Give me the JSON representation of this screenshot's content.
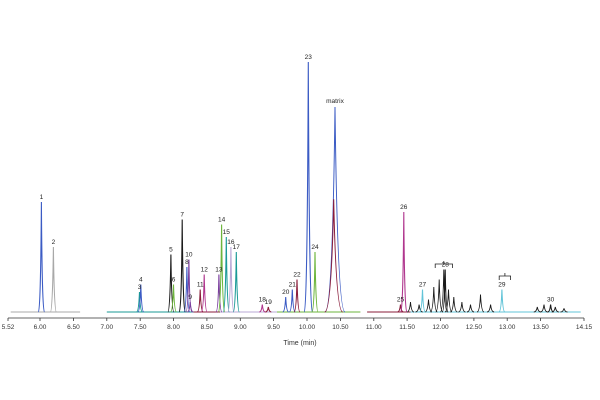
{
  "chart_data": {
    "type": "line",
    "xlabel": "Time (min)",
    "xlim": [
      5.52,
      14.15
    ],
    "x_ticks": [
      "5.52",
      "6.00",
      "6.50",
      "7.00",
      "7.50",
      "8.00",
      "8.50",
      "9.00",
      "9.50",
      "10.00",
      "10.50",
      "11.00",
      "11.50",
      "12.00",
      "12.50",
      "13.00",
      "13.50",
      "14.15"
    ],
    "ylim": [
      0,
      100
    ],
    "colors": {
      "blue": "#3b5bc4",
      "gray": "#a8a8a8",
      "black": "#1a1a1a",
      "green": "#6db53c",
      "teal": "#1a9a96",
      "magenta": "#b0368e",
      "maroon": "#8a1c3a",
      "purple": "#7b3f9e",
      "cyan": "#62c4d8",
      "lavender": "#b9a8d6",
      "lightgray": "#c8c8c8",
      "axis": "#333333"
    },
    "peaks": [
      {
        "label": "1",
        "x": 6.02,
        "height": 44,
        "color": "blue"
      },
      {
        "label": "2",
        "x": 6.2,
        "height": 26,
        "color": "gray"
      },
      {
        "label": "3",
        "x": 7.49,
        "height": 8,
        "color": "teal"
      },
      {
        "label": "4",
        "x": 7.51,
        "height": 11,
        "color": "blue"
      },
      {
        "label": "5",
        "x": 7.96,
        "height": 23,
        "color": "black"
      },
      {
        "label": "6",
        "x": 8.0,
        "height": 11,
        "color": "green"
      },
      {
        "label": "7",
        "x": 8.13,
        "height": 37,
        "color": "black"
      },
      {
        "label": "8",
        "x": 8.2,
        "height": 18,
        "color": "blue"
      },
      {
        "label": "9",
        "x": 8.25,
        "height": 4,
        "color": "purple"
      },
      {
        "label": "10",
        "x": 8.23,
        "height": 21,
        "color": "purple"
      },
      {
        "label": "11",
        "x": 8.4,
        "height": 9,
        "color": "maroon"
      },
      {
        "label": "12",
        "x": 8.46,
        "height": 15,
        "color": "magenta"
      },
      {
        "label": "13",
        "x": 8.68,
        "height": 15,
        "color": "purple"
      },
      {
        "label": "14",
        "x": 8.72,
        "height": 35,
        "color": "green"
      },
      {
        "label": "15",
        "x": 8.79,
        "height": 30,
        "color": "teal"
      },
      {
        "label": "16",
        "x": 8.86,
        "height": 26,
        "color": "lavender"
      },
      {
        "label": "17",
        "x": 8.94,
        "height": 24,
        "color": "teal"
      },
      {
        "label": "18",
        "x": 9.33,
        "height": 3,
        "color": "magenta"
      },
      {
        "label": "19",
        "x": 9.42,
        "height": 2,
        "color": "maroon"
      },
      {
        "label": "20",
        "x": 9.68,
        "height": 6,
        "color": "blue"
      },
      {
        "label": "21",
        "x": 9.78,
        "height": 9,
        "color": "blue"
      },
      {
        "label": "22",
        "x": 9.85,
        "height": 13,
        "color": "maroon"
      },
      {
        "label": "23",
        "x": 10.02,
        "height": 100,
        "color": "blue"
      },
      {
        "label": "24",
        "x": 10.12,
        "height": 24,
        "color": "green"
      },
      {
        "label": "25",
        "x": 11.4,
        "height": 3,
        "color": "maroon"
      },
      {
        "label": "26",
        "x": 11.45,
        "height": 40,
        "color": "magenta"
      },
      {
        "label": "27",
        "x": 11.73,
        "height": 9,
        "color": "cyan"
      },
      {
        "label": "28",
        "x": 12.07,
        "height": 17,
        "color": "black"
      },
      {
        "label": "29",
        "x": 12.92,
        "height": 9,
        "color": "cyan"
      },
      {
        "label": "30",
        "x": 13.65,
        "height": 3,
        "color": "black"
      }
    ],
    "matrix": {
      "label": "matrix",
      "x": 10.42,
      "height": 82,
      "color": "blue"
    }
  }
}
